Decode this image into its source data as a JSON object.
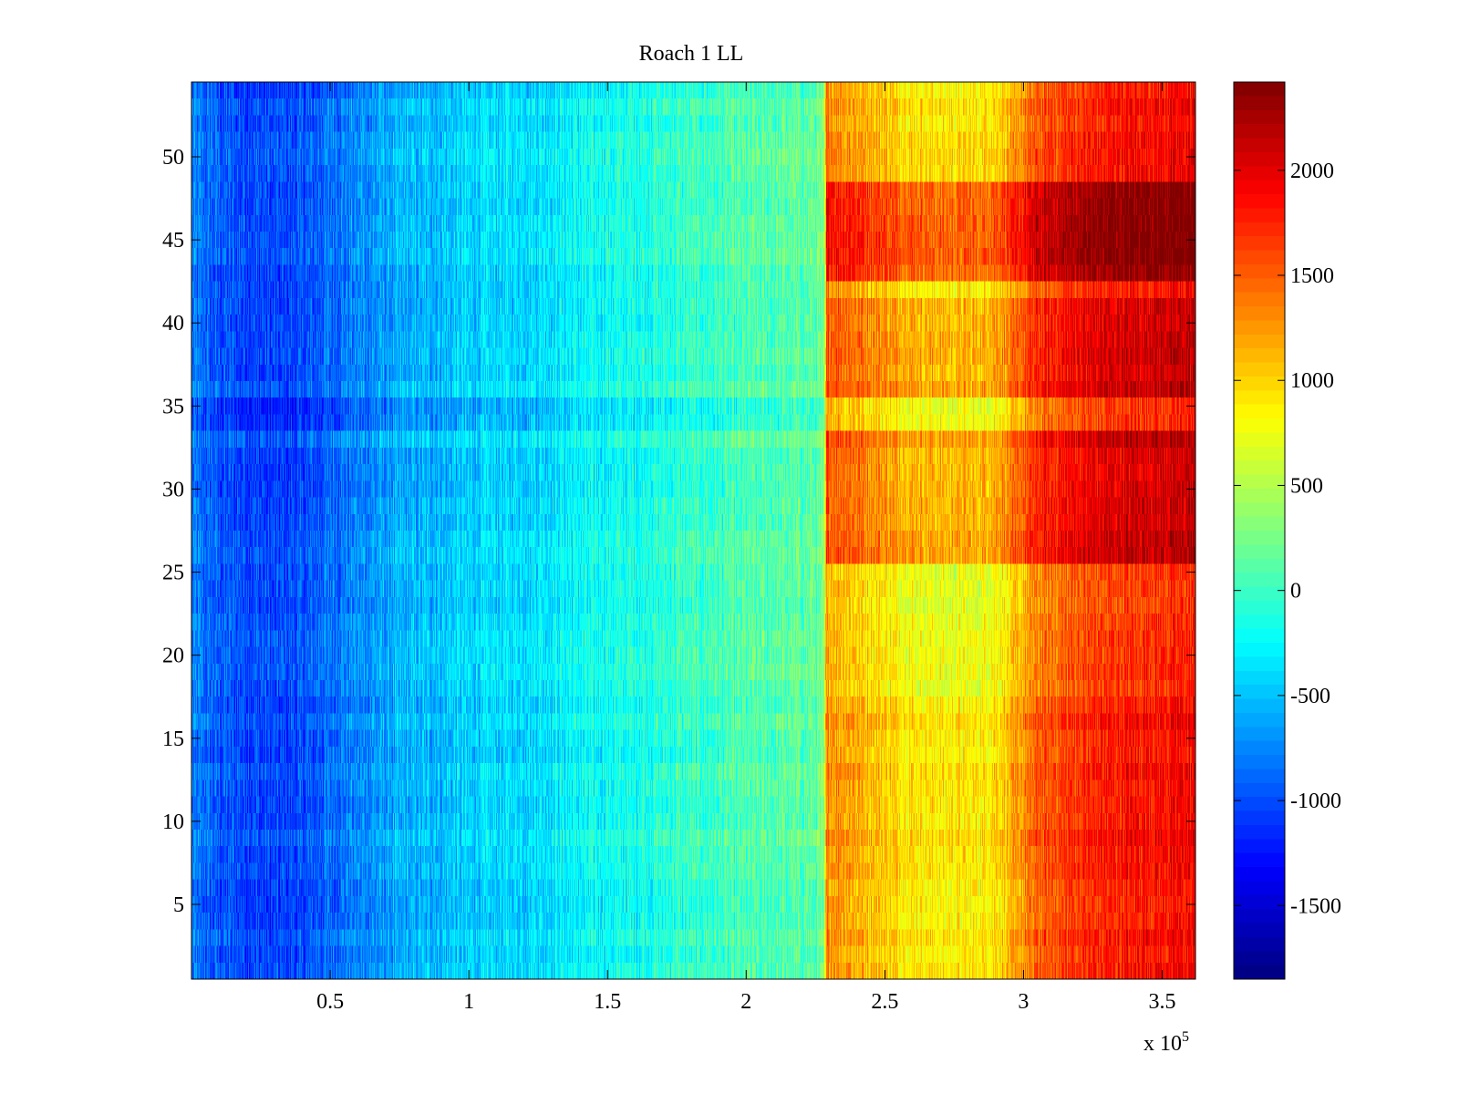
{
  "chart_data": {
    "type": "heatmap",
    "title": "Roach 1 LL",
    "xlabel": "",
    "ylabel": "",
    "x_multiplier_label": "x 10",
    "x_multiplier_exponent": "5",
    "xlim": [
      0,
      362000
    ],
    "ylim": [
      0.5,
      54.5
    ],
    "n_rows": 54,
    "xticks": [
      {
        "value": 50000,
        "label": "0.5"
      },
      {
        "value": 100000,
        "label": "1"
      },
      {
        "value": 150000,
        "label": "1.5"
      },
      {
        "value": 200000,
        "label": "2"
      },
      {
        "value": 250000,
        "label": "2.5"
      },
      {
        "value": 300000,
        "label": "3"
      },
      {
        "value": 350000,
        "label": "3.5"
      }
    ],
    "yticks": [
      {
        "value": 5,
        "label": "5"
      },
      {
        "value": 10,
        "label": "10"
      },
      {
        "value": 15,
        "label": "15"
      },
      {
        "value": 20,
        "label": "20"
      },
      {
        "value": 25,
        "label": "25"
      },
      {
        "value": 30,
        "label": "30"
      },
      {
        "value": 35,
        "label": "35"
      },
      {
        "value": 40,
        "label": "40"
      },
      {
        "value": 45,
        "label": "45"
      },
      {
        "value": 50,
        "label": "50"
      }
    ],
    "colormap": "jet",
    "clim": [
      -1850,
      2420
    ],
    "colorbar_ticks": [
      {
        "value": 2000,
        "label": "2000"
      },
      {
        "value": 1500,
        "label": "1500"
      },
      {
        "value": 1000,
        "label": "1000"
      },
      {
        "value": 500,
        "label": "500"
      },
      {
        "value": 0,
        "label": "0"
      },
      {
        "value": -500,
        "label": "-500"
      },
      {
        "value": -1000,
        "label": "-1000"
      },
      {
        "value": -1500,
        "label": "-1500"
      }
    ],
    "profile_x": [
      0,
      10000,
      30000,
      40000,
      50000,
      75000,
      100000,
      125000,
      150000,
      175000,
      200000,
      225000,
      228000,
      229000,
      240000,
      255000,
      270000,
      285000,
      295000,
      305000,
      320000,
      340000,
      362000
    ],
    "profile_value": [
      -800,
      -950,
      -1050,
      -1000,
      -850,
      -600,
      -450,
      -350,
      -200,
      -50,
      50,
      150,
      200,
      1350,
      1200,
      1000,
      900,
      900,
      1100,
      1500,
      1700,
      1850,
      1900
    ],
    "row_offsets": [
      {
        "rows": [
          43,
          48
        ],
        "from_x": 229000,
        "delta": 550
      },
      {
        "rows": [
          26,
          33
        ],
        "from_x": 229000,
        "delta": 250
      },
      {
        "rows": [
          36,
          41
        ],
        "from_x": 229000,
        "delta": 250
      },
      {
        "rows": [
          34,
          35
        ],
        "from_x": 0,
        "delta": -180
      },
      {
        "rows": [
          18,
          25
        ],
        "from_x": 229000,
        "delta": -200
      }
    ]
  }
}
